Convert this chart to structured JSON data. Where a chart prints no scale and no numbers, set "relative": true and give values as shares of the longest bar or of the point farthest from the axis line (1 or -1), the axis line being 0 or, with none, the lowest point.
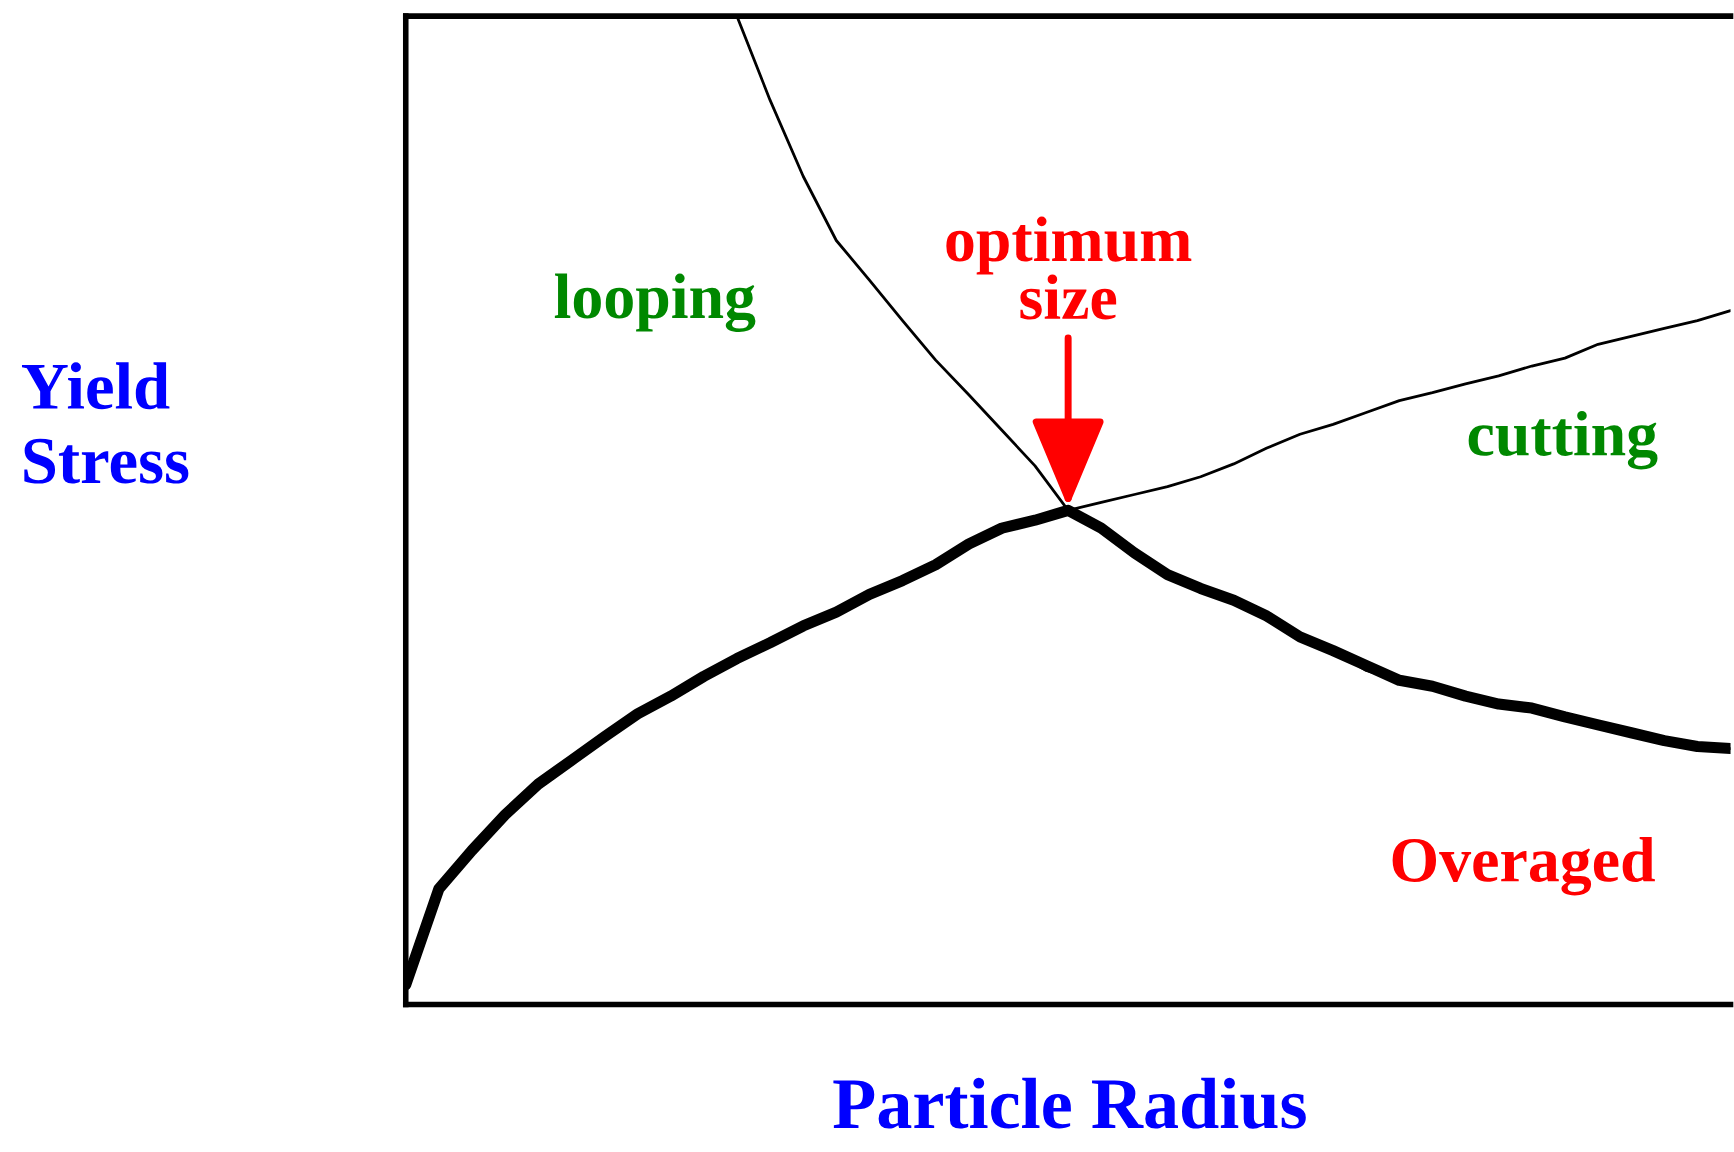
{
  "chart_data": {
    "type": "line",
    "relative": true,
    "xlabel": "Particle Radius",
    "ylabel": "Yield\nStress",
    "categories": [
      null,
      null,
      null,
      null,
      null,
      null,
      null,
      null,
      null,
      null,
      null,
      null,
      null,
      null,
      null,
      null,
      null,
      null,
      null,
      null,
      null,
      null,
      null,
      null,
      null,
      null,
      null,
      null,
      null,
      null,
      null,
      null,
      null,
      null,
      null,
      null,
      null,
      null,
      null,
      null,
      null
    ],
    "series": [
      {
        "color": "#000000",
        "values": [
          0.02,
          0.117,
          0.156,
          0.192,
          0.223,
          0.247,
          0.271,
          0.294,
          0.312,
          0.332,
          0.35,
          0.366,
          0.383,
          0.397,
          0.415,
          0.429,
          0.445,
          0.466,
          0.482,
          0.49,
          0.5,
          0.508,
          0.516,
          0.524,
          0.534,
          0.547,
          0.563,
          0.577,
          0.587,
          0.599,
          0.611,
          0.619,
          0.628,
          0.636,
          0.646,
          0.654,
          0.668,
          0.676,
          0.684,
          0.692,
          0.702
        ]
      },
      {
        "color": "#000000",
        "values": [
          null,
          null,
          null,
          null,
          null,
          null,
          null,
          null,
          null,
          null,
          1.0,
          0.915,
          0.838,
          0.773,
          0.733,
          0.692,
          0.652,
          0.617,
          0.581,
          0.545,
          0.5,
          0.482,
          0.457,
          0.435,
          0.421,
          0.409,
          0.393,
          0.372,
          0.358,
          0.338,
          0.328,
          0.322,
          0.312,
          0.304,
          0.3,
          0.291,
          0.283,
          0.275,
          0.267,
          0.261,
          0.259
        ]
      },
      {
        "color": "#000000",
        "values": [
          0.02,
          0.117,
          0.156,
          0.192,
          0.223,
          0.247,
          0.271,
          0.294,
          0.312,
          0.332,
          0.35,
          0.366,
          0.383,
          0.397,
          0.415,
          0.429,
          0.445,
          0.466,
          0.482,
          0.49,
          0.5,
          0.482,
          0.457,
          0.435,
          0.421,
          0.409,
          0.393,
          0.372,
          0.358,
          0.343,
          0.328,
          0.322,
          0.312,
          0.304,
          0.3,
          0.291,
          0.283,
          0.275,
          0.267,
          0.261,
          0.259
        ]
      }
    ],
    "annotations": [
      "looping",
      "cutting",
      "Overaged",
      {
        "text": "optimum\nsize",
        "y": 0.5
      }
    ],
    "marker": "none",
    "line_style": "solid",
    "grid": false,
    "legend": false
  }
}
